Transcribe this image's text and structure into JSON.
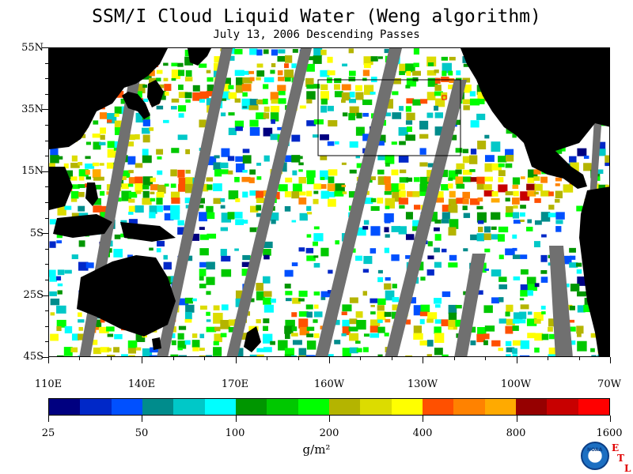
{
  "title": "SSM/I Cloud Liquid Water (Weng algorithm)",
  "subtitle": "July 13, 2006  Descending Passes",
  "lat_labels": [
    "55N",
    "35N",
    "15N",
    "5S",
    "25S",
    "45S"
  ],
  "lon_labels": [
    "110E",
    "140E",
    "170E",
    "160W",
    "130W",
    "100W",
    "70W"
  ],
  "colorbar": {
    "labels": [
      "25",
      "50",
      "100",
      "200",
      "400",
      "800",
      "1600"
    ],
    "units": "g/m²",
    "colors": [
      "#000080",
      "#0028c8",
      "#0050ff",
      "#008c8c",
      "#00c8c8",
      "#00ffff",
      "#009600",
      "#00c800",
      "#00ff00",
      "#b4b400",
      "#dcdc00",
      "#ffff00",
      "#ff5000",
      "#ff8200",
      "#ffaa00",
      "#960000",
      "#c80000",
      "#ff0000"
    ]
  },
  "logo": {
    "agency": "NOAA",
    "letters": [
      "E",
      "T",
      "L"
    ]
  },
  "colors": {
    "land": "#000000",
    "swath_gap": "#707070",
    "ocean_clear": "#ffffff"
  }
}
